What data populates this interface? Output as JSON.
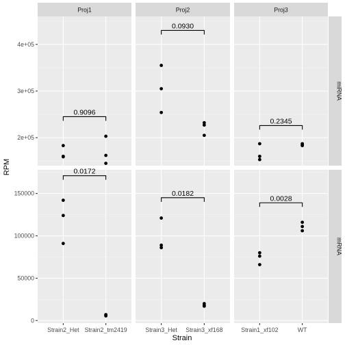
{
  "chart_data": {
    "type": "scatter",
    "xlabel": "Strain",
    "ylabel": "RPM",
    "grid": true,
    "col_facets": [
      "Proj1",
      "Proj2",
      "Proj3"
    ],
    "row_facets": [
      {
        "name": "miRNA",
        "ylim": [
          140000,
          460000
        ],
        "yticks": [
          200000,
          300000,
          400000
        ],
        "ytick_labels": [
          "2e+05",
          "3e+05",
          "4e+05"
        ]
      },
      {
        "name": "mRNA",
        "ylim": [
          -3000,
          178000
        ],
        "yticks": [
          0,
          50000,
          100000,
          150000
        ],
        "ytick_labels": [
          "0",
          "50000",
          "100000",
          "150000"
        ]
      }
    ],
    "panels": [
      {
        "col": "Proj1",
        "row": "miRNA",
        "categories": [
          "Strain2_Het",
          "Strain2_tm2419"
        ],
        "points": [
          [
            183000,
            160000,
            159000
          ],
          [
            203000,
            162000,
            145000
          ]
        ],
        "pvalue": "0.9096",
        "bracket_y": 245000
      },
      {
        "col": "Proj2",
        "row": "miRNA",
        "categories": [
          "Strain3_Het",
          "Strain3_xf168"
        ],
        "points": [
          [
            355000,
            305000,
            254000
          ],
          [
            232000,
            227000,
            205000
          ]
        ],
        "pvalue": "0.0930",
        "bracket_y": 430000
      },
      {
        "col": "Proj3",
        "row": "miRNA",
        "categories": [
          "Strain1_xf102",
          "WT"
        ],
        "points": [
          [
            187000,
            160000,
            153000
          ],
          [
            187000,
            185000,
            183000
          ]
        ],
        "pvalue": "0.2345",
        "bracket_y": 226000
      },
      {
        "col": "Proj1",
        "row": "mRNA",
        "categories": [
          "Strain2_Het",
          "Strain2_tm2419"
        ],
        "points": [
          [
            142000,
            124000,
            91000
          ],
          [
            7000,
            6000,
            5500
          ]
        ],
        "pvalue": "0.0172",
        "bracket_y": 171000
      },
      {
        "col": "Proj2",
        "row": "mRNA",
        "categories": [
          "Strain3_Het",
          "Strain3_xf168"
        ],
        "points": [
          [
            121000,
            89000,
            86000
          ],
          [
            20000,
            18000,
            17000
          ]
        ],
        "pvalue": "0.0182",
        "bracket_y": 145000
      },
      {
        "col": "Proj3",
        "row": "mRNA",
        "categories": [
          "Strain1_xf102",
          "WT"
        ],
        "points": [
          [
            80000,
            76000,
            66000
          ],
          [
            116000,
            111000,
            106000
          ]
        ],
        "pvalue": "0.0028",
        "bracket_y": 139000
      }
    ]
  }
}
